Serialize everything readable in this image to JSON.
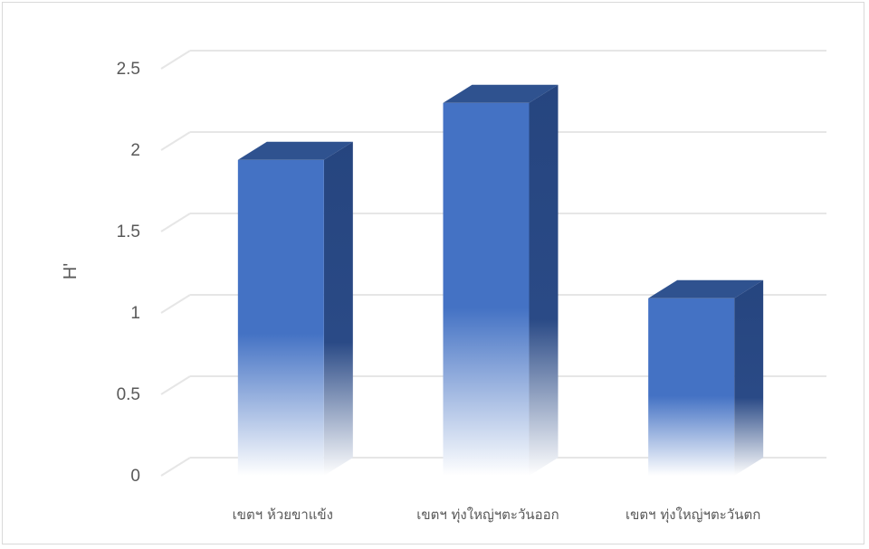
{
  "chart_data": {
    "type": "bar",
    "style": "3d-column",
    "categories": [
      "เขตฯ ห้วยขาแข้ง",
      "เขตฯ ทุ่งใหญ่ฯตะวันออก",
      "เขตฯ ทุ่งใหญ่ฯตะวันตก"
    ],
    "values": [
      1.94,
      2.29,
      1.09
    ],
    "ylabel": "H'",
    "xlabel": "",
    "ylim": [
      0,
      2.5
    ],
    "yticks": [
      "0",
      "0.5",
      "1",
      "1.5",
      "2",
      "2.5"
    ],
    "grid": true,
    "legend": "none",
    "colors": {
      "front": "#4472c4",
      "side": "#26457f",
      "top": "#2f528f",
      "grid": "#e6e6e6"
    }
  }
}
